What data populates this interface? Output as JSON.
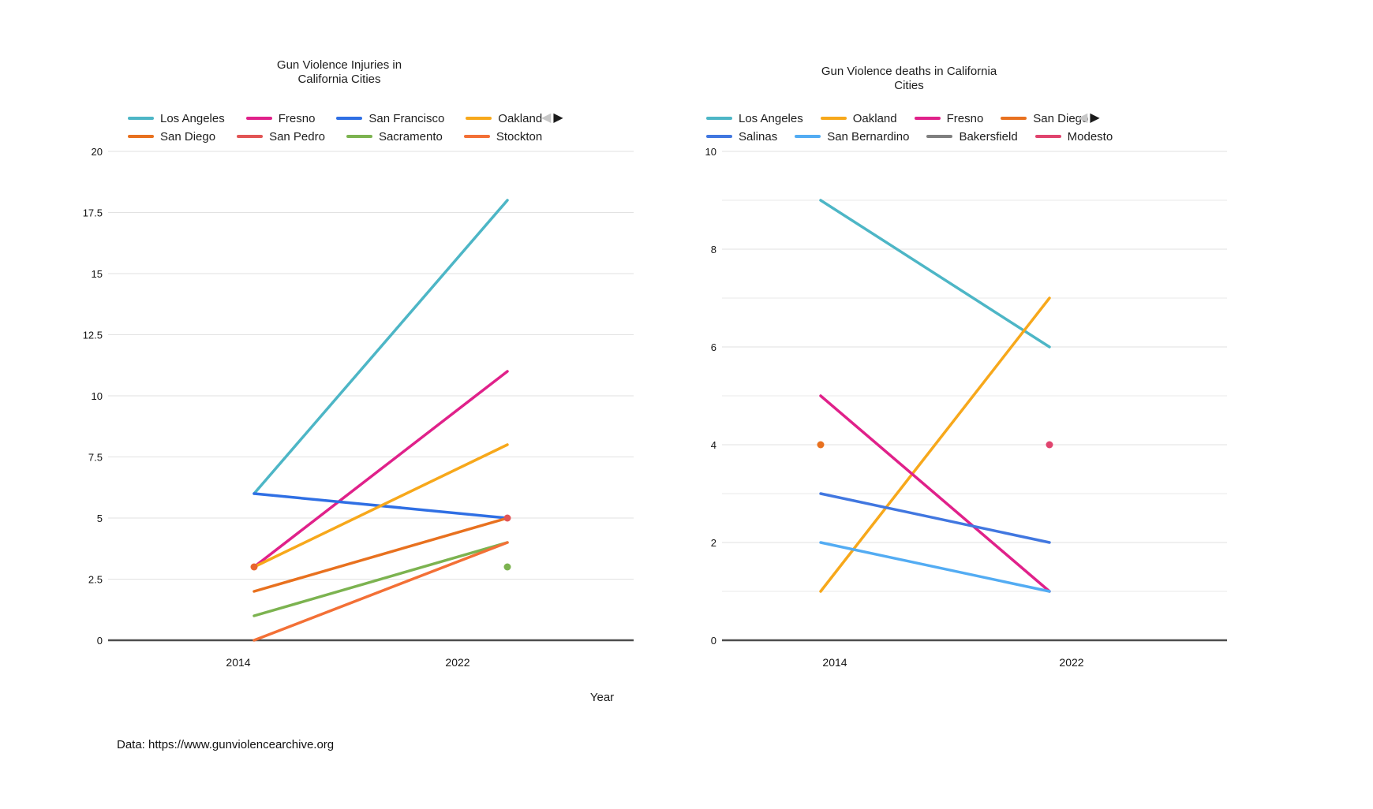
{
  "page": {
    "background": "#ffffff",
    "footer_text": "Data: https://www.gunviolencearchive.org",
    "x_axis_title": "Year",
    "nav_icons": {
      "prev": "left-triangle-icon",
      "next": "right-triangle-icon"
    },
    "nav_colors": {
      "prev": "#C7C7C7",
      "next": "#1B1B1B"
    }
  },
  "chart_data": [
    {
      "type": "line",
      "title": "Gun Violence Injuries in California Cities",
      "title_lines": [
        "Gun Violence Injuries in",
        "California Cities"
      ],
      "xlabel": "Year",
      "ylabel": "",
      "categories": [
        "2014",
        "2022"
      ],
      "y_ticks": [
        "0",
        "2.5",
        "5",
        "7.5",
        "10",
        "12.5",
        "15",
        "17.5",
        "20"
      ],
      "y_minor": [],
      "ylim": [
        0,
        20
      ],
      "grid": true,
      "legend_position": "top",
      "series": [
        {
          "name": "Los Angeles",
          "color": "#4DB6C6",
          "values": [
            6,
            18
          ]
        },
        {
          "name": "Fresno",
          "color": "#E0218A",
          "values": [
            3,
            11
          ]
        },
        {
          "name": "San Francisco",
          "color": "#2F6FE4",
          "values": [
            6,
            5
          ]
        },
        {
          "name": "Oakland",
          "color": "#F7A81B",
          "values": [
            3,
            8
          ]
        },
        {
          "name": "San Diego",
          "color": "#E8711F",
          "values": [
            2,
            5
          ]
        },
        {
          "name": "San Pedro",
          "color": "#E25555",
          "values": [
            null,
            5
          ]
        },
        {
          "name": "Sacramento",
          "color": "#7CB350",
          "values": [
            1,
            4
          ]
        },
        {
          "name": "Stockton",
          "color": "#F37036",
          "values": [
            0,
            4
          ]
        }
      ],
      "extra_point_markers": [
        {
          "category": "2014",
          "value": 3,
          "color": "#E8652F"
        },
        {
          "category": "2022",
          "value": 3,
          "color": "#7CB350"
        }
      ]
    },
    {
      "type": "line",
      "title": "Gun Violence deaths in California Cities",
      "title_lines": [
        "Gun Violence deaths in California",
        "Cities"
      ],
      "xlabel": "",
      "ylabel": "",
      "categories": [
        "2014",
        "2022"
      ],
      "y_ticks": [
        "0",
        "2",
        "4",
        "6",
        "8",
        "10"
      ],
      "y_minor": [
        1,
        3,
        5,
        7,
        9
      ],
      "ylim": [
        0,
        10
      ],
      "grid": true,
      "legend_position": "top",
      "series": [
        {
          "name": "Los Angeles",
          "color": "#4DB6C6",
          "values": [
            9,
            6
          ]
        },
        {
          "name": "Oakland",
          "color": "#F7A81B",
          "values": [
            1,
            7
          ]
        },
        {
          "name": "Fresno",
          "color": "#E0218A",
          "values": [
            5,
            1
          ]
        },
        {
          "name": "San Diego",
          "color": "#E8711F",
          "values": [
            4,
            null
          ]
        },
        {
          "name": "Salinas",
          "color": "#4177E0",
          "values": [
            3,
            2
          ]
        },
        {
          "name": "San Bernardino",
          "color": "#53ACF3",
          "values": [
            2,
            1
          ]
        },
        {
          "name": "Bakersfield",
          "color": "#7F7F7F",
          "values": [
            null,
            null
          ],
          "note": "line not distinctly visible in plot"
        },
        {
          "name": "Modesto",
          "color": "#E0446E",
          "values": [
            null,
            4
          ]
        }
      ],
      "extra_point_markers": []
    }
  ]
}
